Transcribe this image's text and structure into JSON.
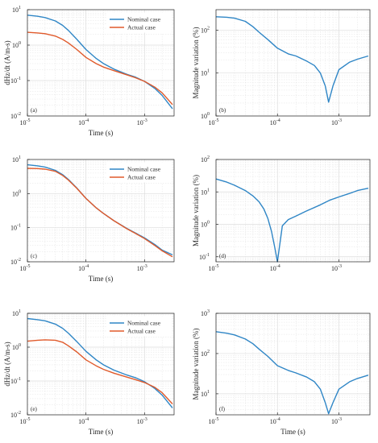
{
  "colors": {
    "nominal": "#2f86c6",
    "actual": "#e05a2b",
    "grid": "#dcdcdc",
    "axis": "#262626"
  },
  "chart_data": [
    {
      "type": "line",
      "panel_label": "(a)",
      "xscale": "log",
      "yscale": "log",
      "xlabel": "Time (s)",
      "ylabel": "dHz/dt (A/m-s)",
      "xlim": [
        1e-05,
        0.0032
      ],
      "ylim": [
        0.01,
        10
      ],
      "xticks": [
        1e-05,
        0.0001,
        0.001
      ],
      "xtick_labels": [
        "10",
        "10",
        "10"
      ],
      "xtick_exps": [
        "-5",
        "-4",
        "-3"
      ],
      "yticks": [
        0.01,
        0.1,
        1,
        10
      ],
      "ytick_labels": [
        "10",
        "10",
        "10",
        "10"
      ],
      "ytick_exps": [
        "-2",
        "-1",
        "0",
        "1"
      ],
      "grid": true,
      "legend": "top-right",
      "series": [
        {
          "name": "Nominal case",
          "color_key": "nominal",
          "x": [
            1e-05,
            1.5e-05,
            2e-05,
            3e-05,
            4e-05,
            5e-05,
            7e-05,
            0.0001,
            0.00015,
            0.0002,
            0.0003,
            0.0005,
            0.0007,
            0.001,
            0.0015,
            0.002,
            0.003
          ],
          "y": [
            7.0,
            6.5,
            6.0,
            4.8,
            3.6,
            2.6,
            1.45,
            0.75,
            0.42,
            0.3,
            0.21,
            0.15,
            0.125,
            0.095,
            0.06,
            0.038,
            0.016
          ]
        },
        {
          "name": "Actual case",
          "color_key": "actual",
          "x": [
            1e-05,
            1.5e-05,
            2e-05,
            3e-05,
            4e-05,
            5e-05,
            7e-05,
            0.0001,
            0.00015,
            0.0002,
            0.0003,
            0.0005,
            0.0007,
            0.001,
            0.0015,
            0.002,
            0.003
          ],
          "y": [
            2.3,
            2.2,
            2.1,
            1.8,
            1.45,
            1.15,
            0.75,
            0.45,
            0.3,
            0.24,
            0.19,
            0.145,
            0.12,
            0.095,
            0.065,
            0.045,
            0.021
          ]
        }
      ]
    },
    {
      "type": "line",
      "panel_label": "(b)",
      "xscale": "log",
      "yscale": "log",
      "xlabel": "",
      "ylabel": "Magnitude variation (%)",
      "xlim": [
        1e-05,
        0.0032
      ],
      "ylim": [
        1,
        300
      ],
      "xticks": [
        1e-05,
        0.0001,
        0.001
      ],
      "xtick_labels": [
        "10",
        "10",
        "10"
      ],
      "xtick_exps": [
        "-5",
        "-4",
        "-3"
      ],
      "yticks": [
        1,
        10,
        100
      ],
      "ytick_labels": [
        "10",
        "10",
        "10"
      ],
      "ytick_exps": [
        "0",
        "1",
        "2"
      ],
      "grid": true,
      "series": [
        {
          "name": "",
          "color_key": "nominal",
          "x": [
            1e-05,
            1.5e-05,
            2e-05,
            3e-05,
            4e-05,
            5e-05,
            7e-05,
            0.0001,
            0.00015,
            0.0002,
            0.0003,
            0.0004,
            0.0005,
            0.0006,
            0.00068,
            0.0008,
            0.001,
            0.0015,
            0.002,
            0.003
          ],
          "y": [
            205,
            200,
            190,
            160,
            120,
            90,
            60,
            38,
            28,
            25,
            19,
            15,
            10,
            5,
            2.1,
            5,
            12,
            18,
            21,
            25
          ]
        }
      ]
    },
    {
      "type": "line",
      "panel_label": "(c)",
      "xscale": "log",
      "yscale": "log",
      "xlabel": "Time (s)",
      "ylabel": "",
      "xlim": [
        1e-05,
        0.0032
      ],
      "ylim": [
        0.01,
        10
      ],
      "xticks": [
        1e-05,
        0.0001,
        0.001
      ],
      "xtick_labels": [
        "10",
        "10",
        "10"
      ],
      "xtick_exps": [
        "-5",
        "-4",
        "-3"
      ],
      "yticks": [
        0.01,
        0.1,
        1,
        10
      ],
      "ytick_labels": [
        "10",
        "10",
        "10",
        "10"
      ],
      "ytick_exps": [
        "-2",
        "-1",
        "0",
        "1"
      ],
      "grid": true,
      "legend": "top-right",
      "series": [
        {
          "name": "Nominal case",
          "color_key": "nominal",
          "x": [
            1e-05,
            1.5e-05,
            2e-05,
            3e-05,
            4e-05,
            5e-05,
            7e-05,
            0.0001,
            0.00015,
            0.0002,
            0.0003,
            0.0005,
            0.0007,
            0.001,
            0.0015,
            0.002,
            0.003
          ],
          "y": [
            7.0,
            6.5,
            6.0,
            4.8,
            3.6,
            2.6,
            1.45,
            0.72,
            0.38,
            0.26,
            0.16,
            0.095,
            0.07,
            0.05,
            0.032,
            0.022,
            0.016
          ]
        },
        {
          "name": "Actual case",
          "color_key": "actual",
          "x": [
            1e-05,
            1.5e-05,
            2e-05,
            3e-05,
            4e-05,
            5e-05,
            7e-05,
            0.0001,
            0.00015,
            0.0002,
            0.0003,
            0.0005,
            0.0007,
            0.001,
            0.0015,
            0.002,
            0.003
          ],
          "y": [
            5.5,
            5.4,
            5.2,
            4.5,
            3.4,
            2.5,
            1.42,
            0.72,
            0.38,
            0.26,
            0.16,
            0.093,
            0.068,
            0.048,
            0.03,
            0.021,
            0.014
          ]
        }
      ]
    },
    {
      "type": "line",
      "panel_label": "(d)",
      "xscale": "log",
      "yscale": "log",
      "xlabel": "",
      "ylabel": "Magnitude variation (%)",
      "xlim": [
        1e-05,
        0.0032
      ],
      "ylim": [
        0.07,
        100
      ],
      "xticks": [
        1e-05,
        0.0001,
        0.001
      ],
      "xtick_labels": [
        "10",
        "10",
        "10"
      ],
      "xtick_exps": [
        "-5",
        "-4",
        "-3"
      ],
      "yticks": [
        0.1,
        1,
        10,
        100
      ],
      "ytick_labels": [
        "10",
        "10",
        "10",
        "10"
      ],
      "ytick_exps": [
        "-1",
        "0",
        "1",
        "2"
      ],
      "grid": true,
      "series": [
        {
          "name": "",
          "color_key": "nominal",
          "x": [
            1e-05,
            1.5e-05,
            2e-05,
            3e-05,
            4e-05,
            5e-05,
            6e-05,
            7e-05,
            8e-05,
            9e-05,
            0.0001,
            0.00012,
            0.00015,
            0.0002,
            0.0003,
            0.0005,
            0.0007,
            0.001,
            0.0015,
            0.002,
            0.003
          ],
          "y": [
            25,
            20,
            16,
            11,
            7.5,
            5,
            3,
            1.5,
            0.6,
            0.2,
            0.07,
            0.9,
            1.4,
            1.8,
            2.6,
            4,
            5.5,
            7,
            9,
            11,
            13
          ]
        }
      ]
    },
    {
      "type": "line",
      "panel_label": "(e)",
      "xscale": "log",
      "yscale": "log",
      "xlabel": "Time (s)",
      "ylabel": "dHz/dt (A/m-s)",
      "xlim": [
        1e-05,
        0.0032
      ],
      "ylim": [
        0.01,
        10
      ],
      "xticks": [
        1e-05,
        0.0001,
        0.001
      ],
      "xtick_labels": [
        "10",
        "10",
        "10"
      ],
      "xtick_exps": [
        "-5",
        "-4",
        "-3"
      ],
      "yticks": [
        0.01,
        0.1,
        1,
        10
      ],
      "ytick_labels": [
        "10",
        "10",
        "10",
        "10"
      ],
      "ytick_exps": [
        "-2",
        "-1",
        "0",
        "1"
      ],
      "grid": true,
      "legend": "top-right",
      "series": [
        {
          "name": "Nominal case",
          "color_key": "nominal",
          "x": [
            1e-05,
            1.5e-05,
            2e-05,
            3e-05,
            4e-05,
            5e-05,
            7e-05,
            0.0001,
            0.00015,
            0.0002,
            0.0003,
            0.0005,
            0.0007,
            0.001,
            0.0015,
            0.002,
            0.003
          ],
          "y": [
            7.0,
            6.5,
            6.0,
            4.8,
            3.6,
            2.6,
            1.45,
            0.75,
            0.42,
            0.3,
            0.21,
            0.15,
            0.125,
            0.095,
            0.06,
            0.038,
            0.016
          ]
        },
        {
          "name": "Actual case",
          "color_key": "actual",
          "x": [
            1e-05,
            1.5e-05,
            2e-05,
            3e-05,
            4e-05,
            5e-05,
            7e-05,
            0.0001,
            0.00015,
            0.0002,
            0.0003,
            0.0005,
            0.0007,
            0.001,
            0.0015,
            0.002,
            0.003
          ],
          "y": [
            1.5,
            1.6,
            1.65,
            1.6,
            1.4,
            1.1,
            0.72,
            0.42,
            0.28,
            0.22,
            0.17,
            0.13,
            0.11,
            0.09,
            0.065,
            0.045,
            0.021
          ]
        }
      ]
    },
    {
      "type": "line",
      "panel_label": "(f)",
      "xscale": "log",
      "yscale": "log",
      "xlabel": "Time (s)",
      "ylabel": "Magnitude variation (%)",
      "xlim": [
        1e-05,
        0.0032
      ],
      "ylim": [
        3,
        1000
      ],
      "xticks": [
        1e-05,
        0.0001,
        0.001
      ],
      "xtick_labels": [
        "10",
        "10",
        "10"
      ],
      "xtick_exps": [
        "-5",
        "-4",
        "-3"
      ],
      "yticks": [
        10,
        100,
        1000
      ],
      "ytick_labels": [
        "10",
        "10",
        "10"
      ],
      "ytick_exps": [
        "1",
        "2",
        "3"
      ],
      "grid": true,
      "series": [
        {
          "name": "",
          "color_key": "nominal",
          "x": [
            1e-05,
            1.5e-05,
            2e-05,
            3e-05,
            4e-05,
            5e-05,
            7e-05,
            0.0001,
            0.00015,
            0.0002,
            0.0003,
            0.0004,
            0.0005,
            0.0006,
            0.00068,
            0.0008,
            0.001,
            0.0015,
            0.002,
            0.003
          ],
          "y": [
            350,
            320,
            290,
            230,
            175,
            130,
            85,
            50,
            38,
            33,
            26,
            20,
            13,
            6,
            3.2,
            6,
            13,
            20,
            24,
            29
          ]
        }
      ]
    }
  ]
}
